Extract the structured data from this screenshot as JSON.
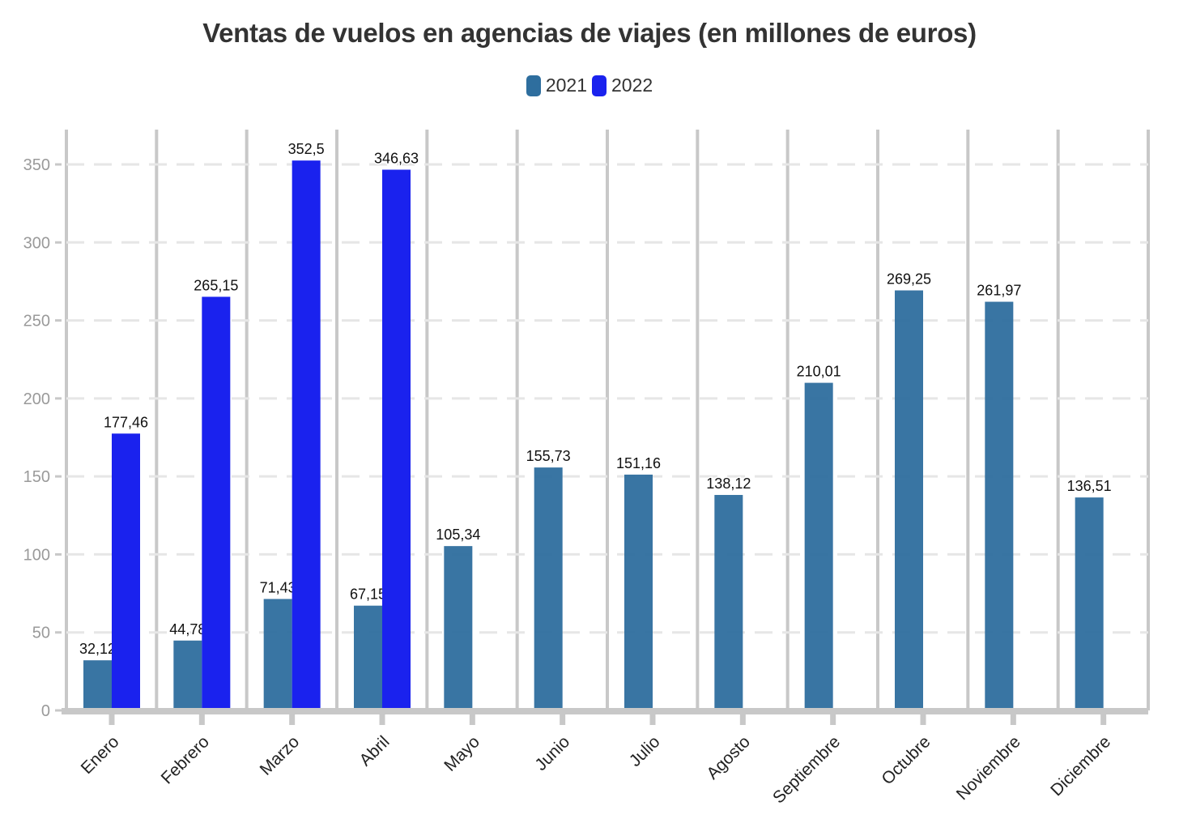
{
  "chart_data": {
    "type": "bar",
    "title": "Ventas de vuelos en agencias de viajes (en millones de euros)",
    "xlabel": "",
    "ylabel": "",
    "categories": [
      "Enero",
      "Febrero",
      "Marzo",
      "Abril",
      "Mayo",
      "Junio",
      "Julio",
      "Agosto",
      "Septiembre",
      "Octubre",
      "Noviembre",
      "Diciembre"
    ],
    "series": [
      {
        "name": "2021",
        "color": "#2e6e9e",
        "values": [
          32.12,
          44.78,
          71.43,
          67.15,
          105.34,
          155.73,
          151.16,
          138.12,
          210.01,
          269.25,
          261.97,
          136.51
        ],
        "labels": [
          "32,12",
          "44,78",
          "71,43",
          "67,15",
          "105,34",
          "155,73",
          "151,16",
          "138,12",
          "210,01",
          "269,25",
          "261,97",
          "136,51"
        ]
      },
      {
        "name": "2022",
        "color": "#1a22ee",
        "values": [
          177.46,
          265.15,
          352.5,
          346.63,
          null,
          null,
          null,
          null,
          null,
          null,
          null,
          null
        ],
        "labels": [
          "177,46",
          "265,15",
          "352,5",
          "346,63",
          null,
          null,
          null,
          null,
          null,
          null,
          null,
          null
        ]
      }
    ],
    "ylim": [
      0,
      370
    ],
    "yticks": [
      0,
      50,
      100,
      150,
      200,
      250,
      300,
      350
    ],
    "grid": true,
    "legend_position": "top-center"
  }
}
